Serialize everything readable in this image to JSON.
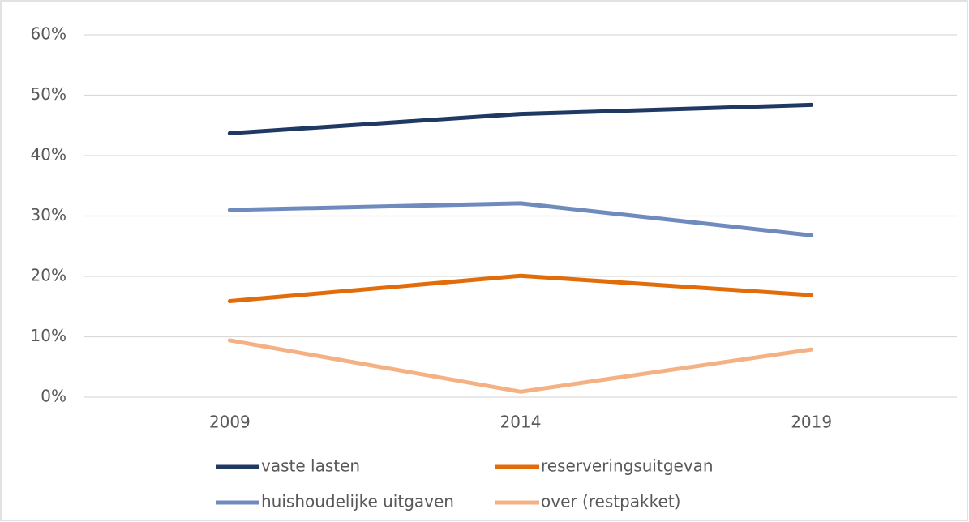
{
  "chart_data": {
    "type": "line",
    "categories": [
      "2009",
      "2014",
      "2019"
    ],
    "series": [
      {
        "name": "vaste lasten",
        "color": "#203864",
        "values": [
          43.7,
          46.9,
          48.4
        ]
      },
      {
        "name": "reserveringsuitgevan",
        "color": "#e26b0a",
        "values": [
          15.9,
          20.1,
          16.9
        ]
      },
      {
        "name": "huishoudelijke uitgaven",
        "color": "#6f8bbd",
        "values": [
          31.0,
          32.1,
          26.8
        ]
      },
      {
        "name": "over (restpakket)",
        "color": "#f4b183",
        "values": [
          9.4,
          0.9,
          7.9
        ]
      }
    ],
    "ylim": [
      0,
      60
    ],
    "yticks": [
      {
        "value": 0,
        "label": "0%"
      },
      {
        "value": 10,
        "label": "10%"
      },
      {
        "value": 20,
        "label": "20%"
      },
      {
        "value": 30,
        "label": "30%"
      },
      {
        "value": 40,
        "label": "40%"
      },
      {
        "value": 50,
        "label": "50%"
      },
      {
        "value": 60,
        "label": "60%"
      }
    ],
    "grid": true,
    "legend": "bottom"
  }
}
